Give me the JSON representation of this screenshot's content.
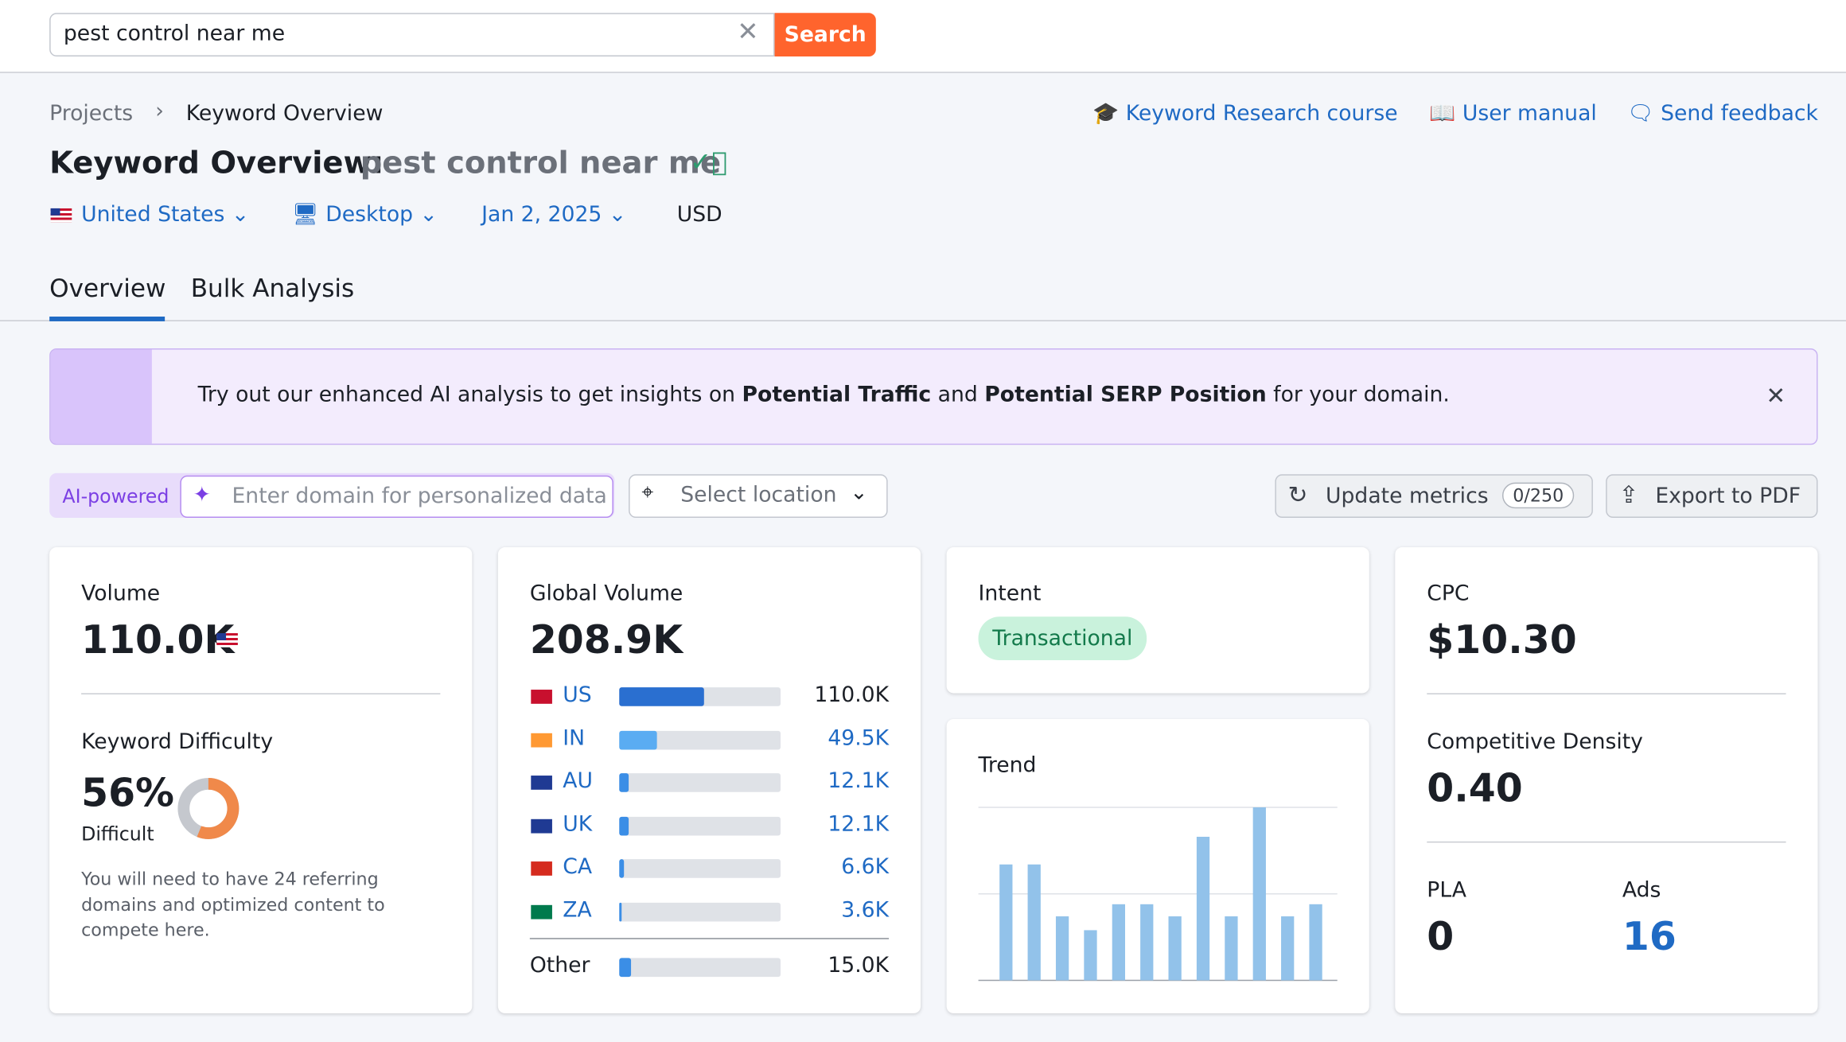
{
  "search": {
    "query": "pest control near me",
    "button": "Search"
  },
  "breadcrumb": [
    "Projects",
    "Keyword Overview"
  ],
  "links": [
    "Keyword Research course",
    "User manual",
    "Send feedback"
  ],
  "title": {
    "label": "Keyword Overview:",
    "keyword": "pest control near me"
  },
  "filters": {
    "country": "United States",
    "device": "Desktop",
    "date": "Jan 2, 2025",
    "currency": "USD"
  },
  "tabs": [
    "Overview",
    "Bulk Analysis"
  ],
  "banner": {
    "parts": [
      "Try out our enhanced AI analysis to get insights on",
      "Potential Traffic",
      "and",
      "Potential SERP Position",
      "for your domain."
    ]
  },
  "toolbar": {
    "ai_badge": "AI-powered",
    "domain_placeholder": "Enter domain for personalized data",
    "location_placeholder": "Select location",
    "update": "Update metrics",
    "update_count": "0/250",
    "export": "Export to PDF"
  },
  "volume": {
    "label": "Volume",
    "value": "110.0K"
  },
  "keyword_difficulty": {
    "label": "Keyword Difficulty",
    "value": 56,
    "value_label": "56%",
    "level": "Difficult",
    "note": "You will need to have 24 referring domains and optimized content to compete here."
  },
  "global_volume": {
    "label": "Global Volume",
    "value": 208900,
    "value_label": "208.9K",
    "countries": [
      {
        "code": "US",
        "value": 110000,
        "value_label": "110.0K"
      },
      {
        "code": "IN",
        "value": 49500,
        "value_label": "49.5K"
      },
      {
        "code": "AU",
        "value": 12100,
        "value_label": "12.1K"
      },
      {
        "code": "UK",
        "value": 12100,
        "value_label": "12.1K"
      },
      {
        "code": "CA",
        "value": 6600,
        "value_label": "6.6K"
      },
      {
        "code": "ZA",
        "value": 3600,
        "value_label": "3.6K"
      }
    ],
    "other": {
      "label": "Other",
      "value": 15000,
      "value_label": "15.0K"
    }
  },
  "intent": {
    "label": "Intent",
    "value": "Transactional"
  },
  "trend": {
    "label": "Trend",
    "values": [
      67,
      67,
      37,
      29,
      44,
      44,
      37,
      83,
      37,
      100,
      37,
      44
    ],
    "ylim": [
      0,
      100
    ],
    "yticks": [
      0,
      50,
      100
    ]
  },
  "cpc": {
    "label": "CPC",
    "value": "$10.30"
  },
  "competitive_density": {
    "label": "Competitive Density",
    "value": 0.4,
    "value_label": "0.40"
  },
  "pla": {
    "label": "PLA",
    "value": 0
  },
  "ads": {
    "label": "Ads",
    "value": 16
  }
}
